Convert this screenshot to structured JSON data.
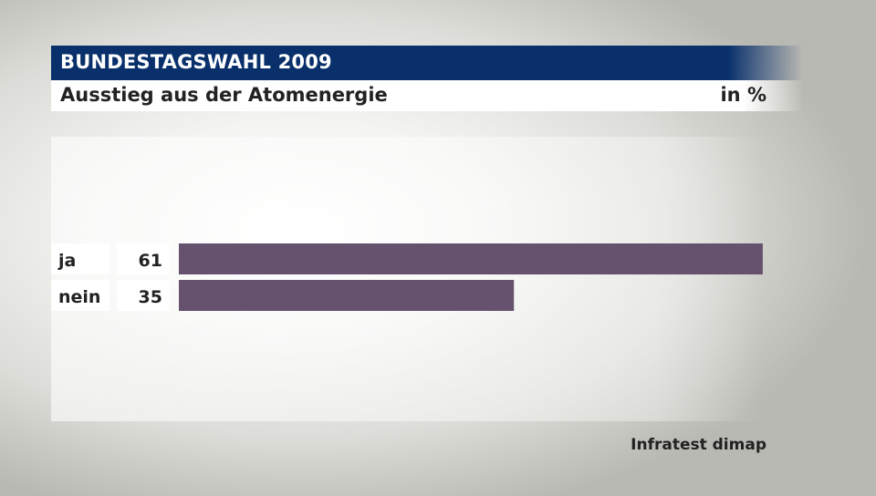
{
  "header": {
    "title": "BUNDESTAGSWAHL 2009",
    "subtitle": "Ausstieg aus der Atomenergie",
    "unit": "in %"
  },
  "source": "Infratest dimap",
  "colors": {
    "header_band": "#09306b",
    "bar": "#66526f",
    "label_box": "#ffffff"
  },
  "chart_data": {
    "type": "bar",
    "orientation": "horizontal",
    "categories": [
      "ja",
      "nein"
    ],
    "values": [
      61,
      35
    ],
    "unit": "in %"
  }
}
